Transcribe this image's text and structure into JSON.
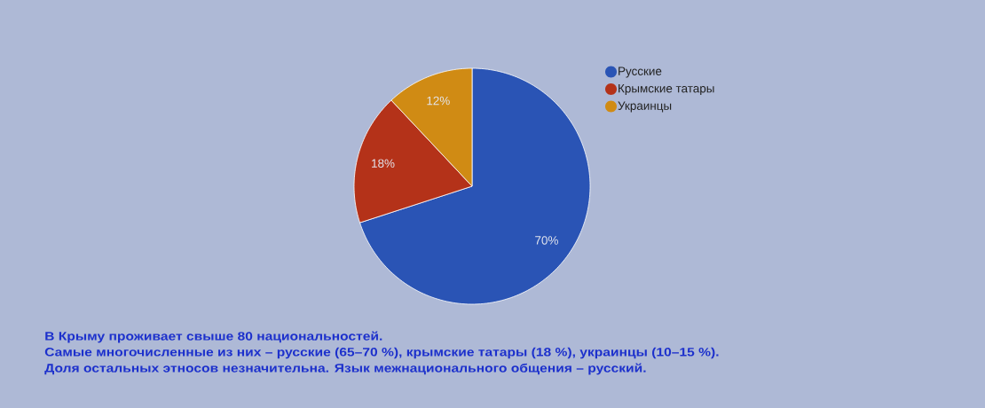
{
  "chart_data": {
    "type": "pie",
    "categories": [
      "Русские",
      "Крымские татары",
      "Украинцы"
    ],
    "values": [
      70,
      18,
      12
    ],
    "colors": [
      "#2a54b5",
      "#b43219",
      "#d08b14"
    ],
    "value_labels": [
      "70%",
      "18%",
      "12%"
    ],
    "legend": "right",
    "annotations": [
      "В Крыму проживает свыше 80 национальностей.",
      "Самые многочисленные из них – русские (65–70 %), крымские татары (18 %), украинцы (10–15 %).",
      "Доля остальных этносов незначительна. Язык межнационального общения – русский."
    ]
  }
}
